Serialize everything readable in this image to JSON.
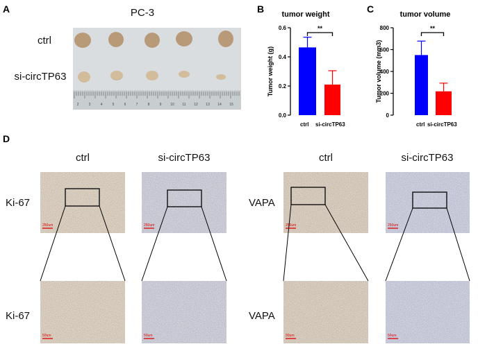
{
  "panels": {
    "a": "A",
    "b": "B",
    "c": "C",
    "d": "D"
  },
  "panel_a": {
    "title": "PC-3",
    "row_labels": [
      "ctrl",
      "si-circTP63"
    ],
    "ruler_numbers": [
      "2",
      "3",
      "4",
      "5",
      "6",
      "7",
      "8",
      "9",
      "10",
      "11",
      "12",
      "13",
      "14",
      "15"
    ]
  },
  "panel_d": {
    "col_labels": [
      "ctrl",
      "si-circTP63",
      "ctrl",
      "si-circTP63"
    ],
    "row_labels_left": [
      "Ki-67",
      "Ki-67"
    ],
    "row_labels_right": [
      "VAPA",
      "VAPA"
    ],
    "scalebar_top": "250um",
    "scalebar_bottom": "50um"
  },
  "chart_data": [
    {
      "type": "bar",
      "title": "tumor weight",
      "categories": [
        "ctrl",
        "si-circTP63"
      ],
      "values": [
        0.465,
        0.21
      ],
      "error_upper": [
        0.535,
        0.305
      ],
      "colors": [
        "#0000ff",
        "#ff0000"
      ],
      "ylabel": "Tumor weight (g)",
      "ylim": [
        0,
        0.6
      ],
      "yticks": [
        "0.0",
        "0.2",
        "0.4",
        "0.6"
      ],
      "significance": "**"
    },
    {
      "type": "bar",
      "title": "tumor volume",
      "categories": [
        "ctrl",
        "si-circTP63"
      ],
      "values": [
        550,
        218
      ],
      "error_upper": [
        678,
        293
      ],
      "colors": [
        "#0000ff",
        "#ff0000"
      ],
      "ylabel": "Tumor volume (mm3)",
      "ylim": [
        0,
        800
      ],
      "yticks": [
        "0",
        "200",
        "400",
        "600",
        "800"
      ],
      "significance": "**"
    }
  ]
}
